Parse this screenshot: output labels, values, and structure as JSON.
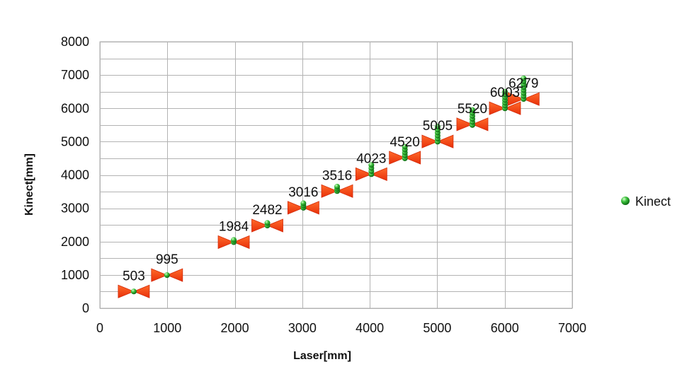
{
  "chart_data": {
    "type": "scatter",
    "xlabel": "Laser[mm]",
    "ylabel": "Kinect[mm]",
    "xlim": [
      0,
      7000
    ],
    "ylim": [
      0,
      8000
    ],
    "x_ticks": [
      "0",
      "1000",
      "2000",
      "3000",
      "4000",
      "5000",
      "6000",
      "7000"
    ],
    "y_ticks": [
      "0",
      "1000",
      "2000",
      "3000",
      "4000",
      "5000",
      "6000",
      "7000",
      "8000"
    ],
    "grid": true,
    "legend": {
      "position": "right",
      "entries": [
        "Kinect"
      ]
    },
    "series": [
      {
        "name": "Kinect",
        "color": "#2fa82f",
        "marker": "sphere",
        "x": [
          503,
          995,
          1984,
          2482,
          3016,
          3516,
          4023,
          4520,
          5005,
          5520,
          6003,
          6279
        ],
        "y_min": [
          503,
          995,
          1984,
          2482,
          3016,
          3516,
          4023,
          4500,
          5000,
          5500,
          6000,
          6280
        ],
        "y_max": [
          503,
          995,
          2050,
          2560,
          3150,
          3650,
          4300,
          4850,
          5450,
          5950,
          6500,
          6900
        ]
      }
    ],
    "reference_markers": {
      "color": "#ff4a14",
      "shape": "bowtie",
      "x": [
        503,
        995,
        1984,
        2482,
        3016,
        3516,
        4023,
        4520,
        5005,
        5520,
        6003,
        6279
      ],
      "y": [
        503,
        995,
        1984,
        2482,
        3016,
        3516,
        4023,
        4520,
        5005,
        5520,
        6003,
        6279
      ],
      "labels": [
        "503",
        "995",
        "1984",
        "2482",
        "3016",
        "3516",
        "4023",
        "4520",
        "5005",
        "5520",
        "6003",
        "6279"
      ]
    }
  }
}
